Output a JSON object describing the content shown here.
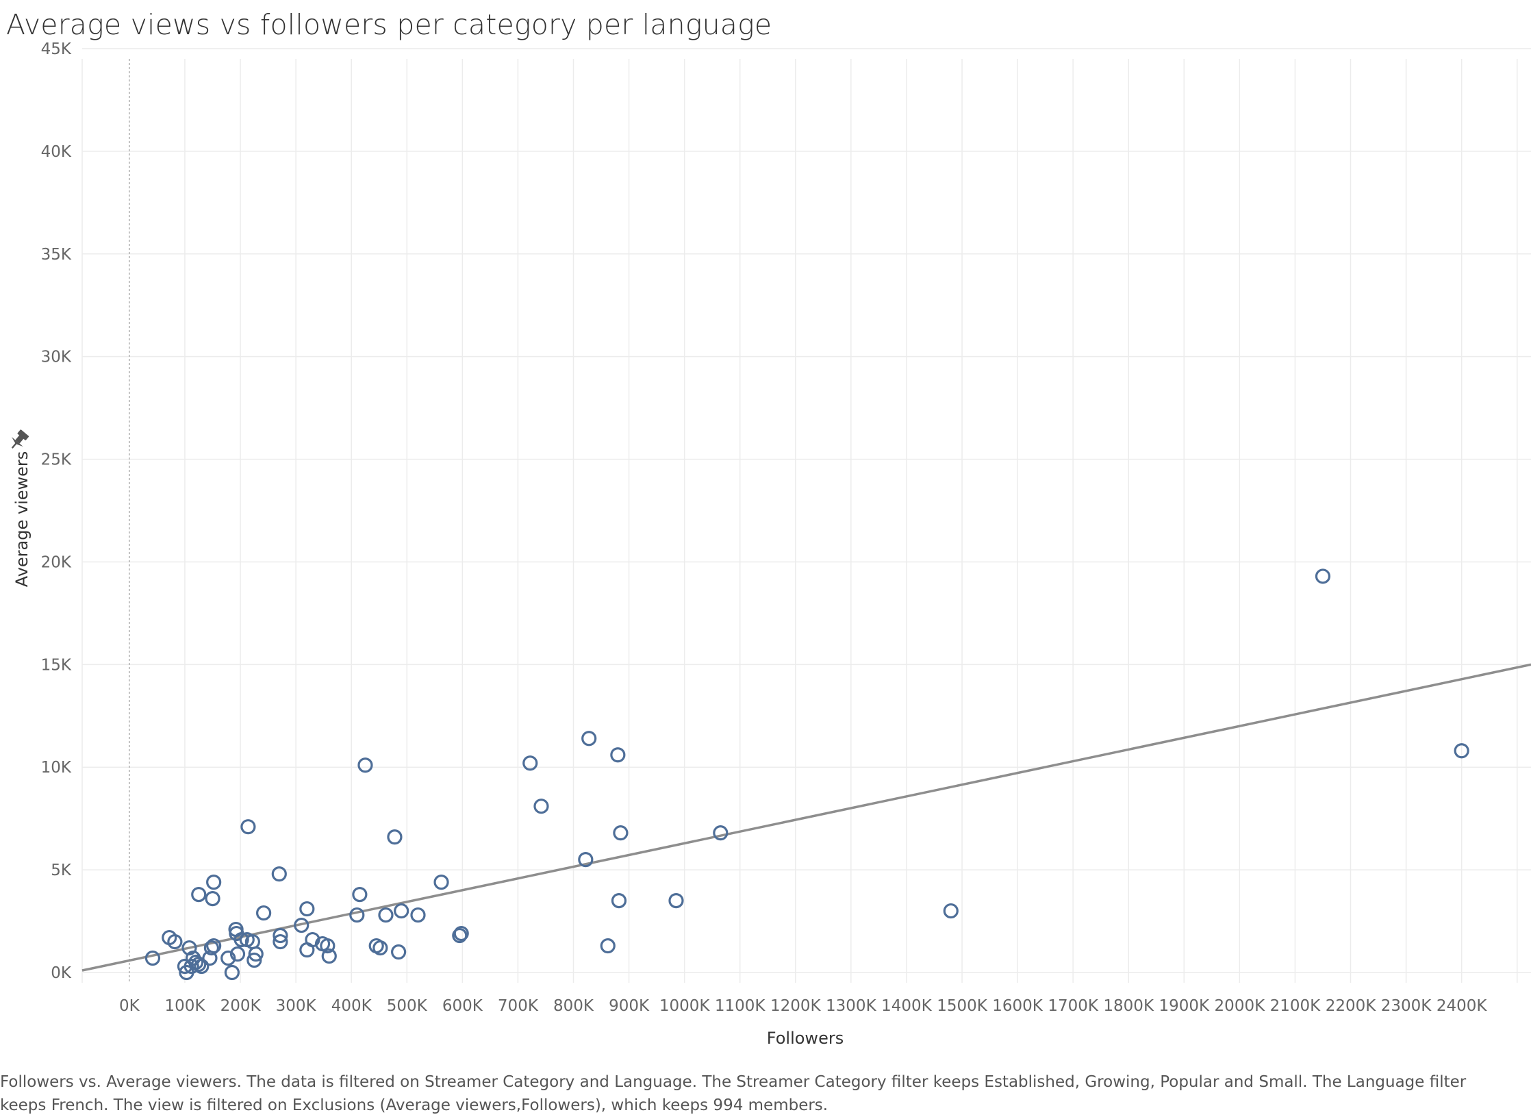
{
  "title": "Average views vs followers per category per language",
  "caption": "Followers vs. Average viewers. The data is filtered on Streamer Category and Language. The Streamer Category filter keeps Established, Growing, Popular and Small. The Language filter keeps French. The view is filtered on Exclusions (Average viewers,Followers), which keeps 994 members.",
  "pin_icon": "pin-icon",
  "colors": {
    "points": "#4e6e98",
    "trend": "#8e8e8e",
    "grid": "#ececec",
    "zero_line": "#b0b0b0"
  },
  "chart_data": {
    "type": "scatter",
    "xlabel": "Followers",
    "ylabel": "Average viewers",
    "xlim": [
      -85000,
      2525000
    ],
    "ylim": [
      -500,
      44500
    ],
    "x_ticks": [
      0,
      100000,
      200000,
      300000,
      400000,
      500000,
      600000,
      700000,
      800000,
      900000,
      1000000,
      1100000,
      1200000,
      1300000,
      1400000,
      1500000,
      1600000,
      1700000,
      1800000,
      1900000,
      2000000,
      2100000,
      2200000,
      2300000,
      2400000
    ],
    "x_tick_labels": [
      "0K",
      "100K",
      "200K",
      "300K",
      "400K",
      "500K",
      "600K",
      "700K",
      "800K",
      "900K",
      "1000K",
      "1100K",
      "1200K",
      "1300K",
      "1400K",
      "1500K",
      "1600K",
      "1700K",
      "1800K",
      "1900K",
      "2000K",
      "2100K",
      "2200K",
      "2300K",
      "2400K"
    ],
    "y_ticks": [
      0,
      5000,
      10000,
      15000,
      20000,
      25000,
      30000,
      35000,
      40000,
      45000
    ],
    "y_tick_labels": [
      "0K",
      "5K",
      "10K",
      "15K",
      "20K",
      "25K",
      "30K",
      "35K",
      "40K",
      "45K"
    ],
    "grid": true,
    "trend_line": {
      "x": [
        -85000,
        2525000
      ],
      "y": [
        100,
        15000
      ]
    },
    "points": [
      {
        "x": 2150000,
        "y": 19300
      },
      {
        "x": 2400000,
        "y": 10800
      },
      {
        "x": 1480000,
        "y": 3000
      },
      {
        "x": 1065000,
        "y": 6800
      },
      {
        "x": 985000,
        "y": 3500
      },
      {
        "x": 885000,
        "y": 6800
      },
      {
        "x": 880000,
        "y": 10600
      },
      {
        "x": 882000,
        "y": 3500
      },
      {
        "x": 828000,
        "y": 11400
      },
      {
        "x": 822000,
        "y": 5500
      },
      {
        "x": 862000,
        "y": 1300
      },
      {
        "x": 742000,
        "y": 8100
      },
      {
        "x": 722000,
        "y": 10200
      },
      {
        "x": 562000,
        "y": 4400
      },
      {
        "x": 598000,
        "y": 1900
      },
      {
        "x": 595000,
        "y": 1800
      },
      {
        "x": 520000,
        "y": 2800
      },
      {
        "x": 490000,
        "y": 3000
      },
      {
        "x": 478000,
        "y": 6600
      },
      {
        "x": 485000,
        "y": 1000
      },
      {
        "x": 462000,
        "y": 2800
      },
      {
        "x": 452000,
        "y": 1200
      },
      {
        "x": 445000,
        "y": 1300
      },
      {
        "x": 425000,
        "y": 10100
      },
      {
        "x": 415000,
        "y": 3800
      },
      {
        "x": 410000,
        "y": 2800
      },
      {
        "x": 360000,
        "y": 800
      },
      {
        "x": 357000,
        "y": 1300
      },
      {
        "x": 348000,
        "y": 1400
      },
      {
        "x": 330000,
        "y": 1600
      },
      {
        "x": 320000,
        "y": 1100
      },
      {
        "x": 320000,
        "y": 3100
      },
      {
        "x": 310000,
        "y": 2300
      },
      {
        "x": 272000,
        "y": 1800
      },
      {
        "x": 272000,
        "y": 1500
      },
      {
        "x": 270000,
        "y": 4800
      },
      {
        "x": 242000,
        "y": 2900
      },
      {
        "x": 228000,
        "y": 900
      },
      {
        "x": 225000,
        "y": 600
      },
      {
        "x": 222000,
        "y": 1500
      },
      {
        "x": 214000,
        "y": 7100
      },
      {
        "x": 212000,
        "y": 1600
      },
      {
        "x": 202000,
        "y": 1600
      },
      {
        "x": 195000,
        "y": 900
      },
      {
        "x": 193000,
        "y": 1900
      },
      {
        "x": 192000,
        "y": 2100
      },
      {
        "x": 185000,
        "y": 0
      },
      {
        "x": 178000,
        "y": 700
      },
      {
        "x": 152000,
        "y": 4400
      },
      {
        "x": 150000,
        "y": 3600
      },
      {
        "x": 152000,
        "y": 1300
      },
      {
        "x": 148000,
        "y": 1200
      },
      {
        "x": 145000,
        "y": 700
      },
      {
        "x": 125000,
        "y": 3800
      },
      {
        "x": 130000,
        "y": 300
      },
      {
        "x": 125000,
        "y": 400
      },
      {
        "x": 120000,
        "y": 500
      },
      {
        "x": 115000,
        "y": 700
      },
      {
        "x": 108000,
        "y": 1200
      },
      {
        "x": 112000,
        "y": 300
      },
      {
        "x": 100000,
        "y": 300
      },
      {
        "x": 103000,
        "y": 0
      },
      {
        "x": 82000,
        "y": 1500
      },
      {
        "x": 72000,
        "y": 1700
      },
      {
        "x": 42000,
        "y": 700
      }
    ]
  }
}
